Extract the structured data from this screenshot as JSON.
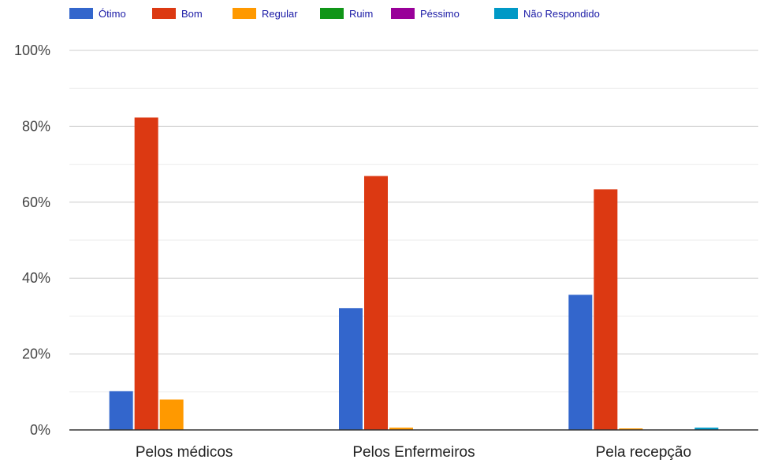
{
  "chart_data": {
    "type": "bar",
    "categories": [
      "Pelos médicos",
      "Pelos Enfermeiros",
      "Pela recepção"
    ],
    "series": [
      {
        "name": "Ótimo",
        "color": "#3366cc",
        "values": [
          10.2,
          32.1,
          35.6
        ]
      },
      {
        "name": "Bom",
        "color": "#dc3912",
        "values": [
          82.3,
          66.9,
          63.4
        ]
      },
      {
        "name": "Regular",
        "color": "#ff9900",
        "values": [
          8.0,
          0.6,
          0.4
        ]
      },
      {
        "name": "Ruim",
        "color": "#109618",
        "values": [
          0,
          0,
          0
        ]
      },
      {
        "name": "Péssimo",
        "color": "#990099",
        "values": [
          0,
          0,
          0
        ]
      },
      {
        "name": "Não Respondido",
        "color": "#0099c6",
        "values": [
          0,
          0,
          0.6
        ]
      }
    ],
    "yticks": [
      "0%",
      "20%",
      "40%",
      "60%",
      "80%",
      "100%"
    ],
    "ylim": [
      0,
      100
    ],
    "grid": true,
    "legend": "top"
  }
}
